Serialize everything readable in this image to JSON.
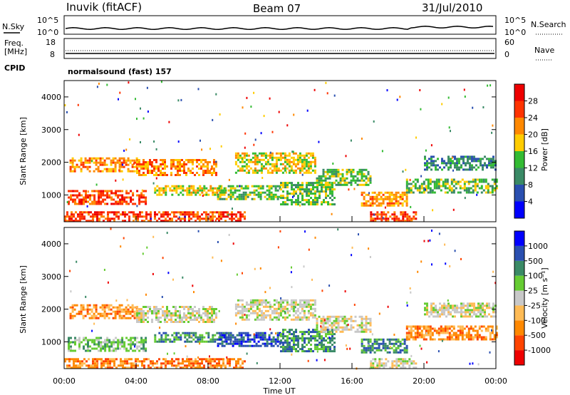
{
  "header": {
    "station": "Inuvik (fitACF)",
    "beam": "Beam 07",
    "date": "31/Jul/2010"
  },
  "noise_panel": {
    "left_label": "N.Sky",
    "right_label": "N.Search",
    "left_ticks": [
      "10^5",
      "10^0"
    ],
    "right_ticks": [
      "10^5",
      "10^0"
    ]
  },
  "freq_panel": {
    "left_label_line1": "Freq.",
    "left_label_line2": "[MHz]",
    "right_label": "Nave",
    "left_ticks": [
      "18",
      "8"
    ],
    "right_ticks": [
      "60",
      "0"
    ]
  },
  "cpid": {
    "label": "CPID",
    "value": "normalsound (fast) 157"
  },
  "x_axis": {
    "label": "Time UT",
    "ticks": [
      "00:00",
      "04:00",
      "08:00",
      "12:00",
      "16:00",
      "20:00",
      "00:00"
    ]
  },
  "chart_data": [
    {
      "type": "heatmap",
      "title": "",
      "xlabel": "Time UT",
      "ylabel": "Slant Range [km]",
      "xlim_hours": [
        0,
        24
      ],
      "ylim_km": [
        180,
        4500
      ],
      "y_ticks": [
        "1000",
        "2000",
        "3000",
        "4000"
      ],
      "colorbar": {
        "label": "Power [dB]",
        "ticks": [
          "28",
          "24",
          "20",
          "16",
          "12",
          "8",
          "4"
        ],
        "colors": [
          "#0000ff",
          "#2a4fb0",
          "#3a8a66",
          "#33bb33",
          "#ffcc00",
          "#ff8800",
          "#ff3300",
          "#ee0000"
        ]
      },
      "bands": [
        {
          "t0": 0.2,
          "t1": 4.5,
          "r0": 750,
          "r1": 1150,
          "level": 6
        },
        {
          "t0": 0.3,
          "t1": 4.0,
          "r0": 1750,
          "r1": 2150,
          "level": 5
        },
        {
          "t0": 4.0,
          "t1": 8.5,
          "r0": 1600,
          "r1": 2100,
          "level": 5
        },
        {
          "t0": 5.0,
          "t1": 9.0,
          "r0": 1000,
          "r1": 1300,
          "level": 4
        },
        {
          "t0": 9.5,
          "t1": 14.0,
          "r0": 1700,
          "r1": 2300,
          "level": 4
        },
        {
          "t0": 8.5,
          "t1": 12.0,
          "r0": 900,
          "r1": 1300,
          "level": 3
        },
        {
          "t0": 0.0,
          "t1": 10.0,
          "r0": 180,
          "r1": 500,
          "level": 6
        },
        {
          "t0": 12.0,
          "t1": 15.0,
          "r0": 700,
          "r1": 1400,
          "level": 3
        },
        {
          "t0": 14.0,
          "t1": 17.0,
          "r0": 1300,
          "r1": 1800,
          "level": 3
        },
        {
          "t0": 16.5,
          "t1": 19.0,
          "r0": 700,
          "r1": 1100,
          "level": 5
        },
        {
          "t0": 17.0,
          "t1": 19.5,
          "r0": 180,
          "r1": 500,
          "level": 6
        },
        {
          "t0": 19.0,
          "t1": 24.0,
          "r0": 1100,
          "r1": 1500,
          "level": 3
        },
        {
          "t0": 20.0,
          "t1": 24.0,
          "r0": 1800,
          "r1": 2200,
          "level": 2
        }
      ]
    },
    {
      "type": "heatmap",
      "title": "",
      "xlabel": "Time UT",
      "ylabel": "Slant Range [km]",
      "xlim_hours": [
        0,
        24
      ],
      "ylim_km": [
        180,
        4500
      ],
      "y_ticks": [
        "1000",
        "2000",
        "3000",
        "4000"
      ],
      "colorbar": {
        "label": "Velocity [m s⁻¹]",
        "ticks": [
          "1000",
          "500",
          "100",
          "25",
          "-25",
          "-100",
          "-500",
          "-1000"
        ],
        "colors": [
          "#ee0000",
          "#ff4400",
          "#ff8800",
          "#ffbb55",
          "#c8c8c8",
          "#66cc33",
          "#3a8a66",
          "#2a4fb0",
          "#0000ff"
        ]
      },
      "bands": [
        {
          "t0": 0.2,
          "t1": 4.5,
          "r0": 750,
          "r1": 1150,
          "level": 5
        },
        {
          "t0": 0.3,
          "t1": 4.0,
          "r0": 1750,
          "r1": 2150,
          "level": 2
        },
        {
          "t0": 4.0,
          "t1": 8.5,
          "r0": 1600,
          "r1": 2100,
          "level": 4
        },
        {
          "t0": 5.0,
          "t1": 9.0,
          "r0": 1000,
          "r1": 1300,
          "level": 6
        },
        {
          "t0": 9.5,
          "t1": 14.0,
          "r0": 1700,
          "r1": 2300,
          "level": 4
        },
        {
          "t0": 8.5,
          "t1": 12.0,
          "r0": 900,
          "r1": 1300,
          "level": 7
        },
        {
          "t0": 0.0,
          "t1": 10.0,
          "r0": 180,
          "r1": 500,
          "level": 2
        },
        {
          "t0": 12.0,
          "t1": 15.0,
          "r0": 700,
          "r1": 1400,
          "level": 6
        },
        {
          "t0": 14.0,
          "t1": 17.0,
          "r0": 1300,
          "r1": 1800,
          "level": 4
        },
        {
          "t0": 16.5,
          "t1": 19.0,
          "r0": 700,
          "r1": 1100,
          "level": 6
        },
        {
          "t0": 17.0,
          "t1": 19.5,
          "r0": 180,
          "r1": 500,
          "level": 4
        },
        {
          "t0": 19.0,
          "t1": 24.0,
          "r0": 1100,
          "r1": 1500,
          "level": 2
        },
        {
          "t0": 20.0,
          "t1": 24.0,
          "r0": 1800,
          "r1": 2200,
          "level": 4
        }
      ]
    }
  ]
}
